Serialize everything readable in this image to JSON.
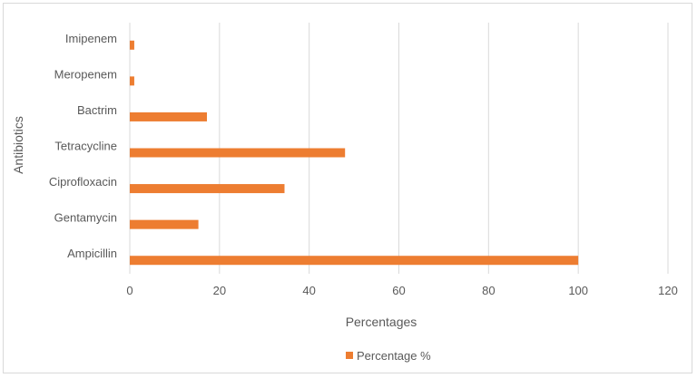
{
  "chart_data": {
    "type": "bar",
    "orientation": "horizontal",
    "categories": [
      "Imipenem",
      "Meropenem",
      "Bactrim",
      "Tetracycline",
      "Ciprofloxacin",
      "Gentamycin",
      "Ampicillin"
    ],
    "series": [
      {
        "name": "Percentage %",
        "values": [
          1,
          1,
          17.2,
          48,
          34.5,
          15.3,
          100
        ]
      }
    ],
    "xlabel": "Percentages",
    "ylabel": "Antibiotics",
    "xlim": [
      0,
      120
    ],
    "xticks": [
      "0",
      "20",
      "40",
      "60",
      "80",
      "100",
      "120"
    ],
    "grid": true,
    "legend_position": "bottom",
    "bar_color": "#ed7d31",
    "grid_color": "#d9d9d9"
  }
}
